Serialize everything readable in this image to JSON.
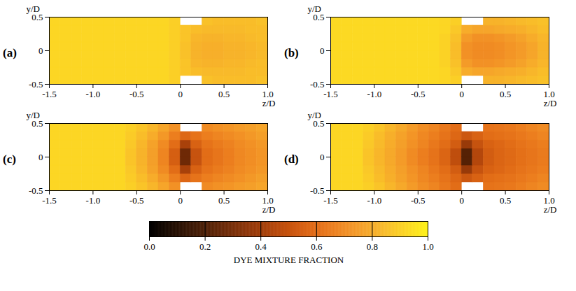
{
  "chart_data": {
    "type": "heatmap",
    "xlabel": "z/D",
    "ylabel": "y/D",
    "xlim": [
      -1.5,
      1.0
    ],
    "ylim": [
      -0.5,
      0.5
    ],
    "xticks": [
      {
        "value": -1.5,
        "label": "-1.5"
      },
      {
        "value": -1.0,
        "label": "-1.0"
      },
      {
        "value": -0.5,
        "label": "-0.5"
      },
      0,
      0.5,
      {
        "value": 1.0,
        "label": "1.0"
      }
    ],
    "yticks": [
      {
        "value": -0.5,
        "label": "-0.5"
      },
      0,
      0.5
    ],
    "xbins": [
      -1.5,
      -1.375,
      -1.25,
      -1.125,
      -1.0,
      -0.875,
      -0.75,
      -0.625,
      -0.5,
      -0.375,
      -0.25,
      -0.125,
      0,
      0.125,
      0.25,
      0.375,
      0.5,
      0.625,
      0.75,
      0.875,
      1.0
    ],
    "ybins": [
      -0.5,
      -0.375,
      -0.25,
      -0.125,
      0,
      0.125,
      0.25,
      0.375,
      0.5
    ],
    "colorbar": {
      "label": "DYE MIXTURE FRACTION",
      "range": [
        0,
        1
      ],
      "ticks": [
        {
          "value": 0,
          "label": "0.0"
        },
        {
          "value": 0.2,
          "label": "0.2"
        },
        {
          "value": 0.4,
          "label": "0.4"
        },
        {
          "value": 0.6,
          "label": "0.6"
        },
        {
          "value": 0.8,
          "label": "0.8"
        },
        {
          "value": 1,
          "label": "1.0"
        }
      ]
    },
    "panels": [
      {
        "label": "(a)",
        "cells": [
          [
            0.92,
            0.92,
            0.92,
            0.92,
            0.92,
            0.92,
            0.92,
            0.92,
            0.92,
            0.92,
            0.92,
            0.9,
            null,
            null,
            0.86,
            0.85,
            0.85,
            0.85,
            0.85,
            0.86
          ],
          [
            0.92,
            0.92,
            0.92,
            0.92,
            0.92,
            0.92,
            0.92,
            0.92,
            0.92,
            0.92,
            0.92,
            0.9,
            0.87,
            0.85,
            0.84,
            0.84,
            0.84,
            0.84,
            0.85,
            0.85
          ],
          [
            0.92,
            0.92,
            0.92,
            0.92,
            0.92,
            0.92,
            0.92,
            0.92,
            0.92,
            0.92,
            0.92,
            0.9,
            0.87,
            0.83,
            0.82,
            0.82,
            0.83,
            0.83,
            0.84,
            0.85
          ],
          [
            0.92,
            0.92,
            0.92,
            0.92,
            0.92,
            0.92,
            0.92,
            0.92,
            0.92,
            0.92,
            0.92,
            0.9,
            0.86,
            0.82,
            0.81,
            0.81,
            0.82,
            0.82,
            0.83,
            0.84
          ],
          [
            0.92,
            0.92,
            0.92,
            0.92,
            0.92,
            0.92,
            0.92,
            0.92,
            0.92,
            0.92,
            0.92,
            0.9,
            0.86,
            0.82,
            0.81,
            0.81,
            0.82,
            0.82,
            0.83,
            0.84
          ],
          [
            0.92,
            0.92,
            0.92,
            0.92,
            0.92,
            0.92,
            0.92,
            0.92,
            0.92,
            0.92,
            0.92,
            0.9,
            0.87,
            0.83,
            0.82,
            0.82,
            0.83,
            0.83,
            0.84,
            0.85
          ],
          [
            0.92,
            0.92,
            0.92,
            0.92,
            0.92,
            0.92,
            0.92,
            0.92,
            0.92,
            0.92,
            0.92,
            0.9,
            0.87,
            0.85,
            0.84,
            0.84,
            0.84,
            0.84,
            0.85,
            0.85
          ],
          [
            0.92,
            0.92,
            0.92,
            0.92,
            0.92,
            0.92,
            0.92,
            0.92,
            0.92,
            0.92,
            0.92,
            0.9,
            null,
            null,
            0.86,
            0.85,
            0.85,
            0.85,
            0.85,
            0.86
          ]
        ]
      },
      {
        "label": "(b)",
        "cells": [
          [
            0.93,
            0.93,
            0.93,
            0.93,
            0.93,
            0.93,
            0.93,
            0.93,
            0.93,
            0.93,
            0.92,
            0.9,
            null,
            null,
            0.82,
            0.82,
            0.83,
            0.84,
            0.85,
            0.86
          ],
          [
            0.93,
            0.93,
            0.93,
            0.93,
            0.93,
            0.93,
            0.93,
            0.93,
            0.93,
            0.93,
            0.92,
            0.88,
            0.8,
            0.78,
            0.78,
            0.79,
            0.8,
            0.81,
            0.83,
            0.85
          ],
          [
            0.93,
            0.93,
            0.93,
            0.93,
            0.93,
            0.93,
            0.93,
            0.93,
            0.93,
            0.93,
            0.91,
            0.86,
            0.75,
            0.72,
            0.72,
            0.73,
            0.75,
            0.77,
            0.8,
            0.83
          ],
          [
            0.93,
            0.93,
            0.93,
            0.93,
            0.93,
            0.93,
            0.93,
            0.93,
            0.93,
            0.93,
            0.91,
            0.85,
            0.72,
            0.7,
            0.7,
            0.71,
            0.73,
            0.75,
            0.78,
            0.82
          ],
          [
            0.93,
            0.93,
            0.93,
            0.93,
            0.93,
            0.93,
            0.93,
            0.93,
            0.93,
            0.93,
            0.91,
            0.85,
            0.72,
            0.7,
            0.7,
            0.71,
            0.73,
            0.75,
            0.78,
            0.82
          ],
          [
            0.93,
            0.93,
            0.93,
            0.93,
            0.93,
            0.93,
            0.93,
            0.93,
            0.93,
            0.93,
            0.91,
            0.86,
            0.75,
            0.72,
            0.72,
            0.73,
            0.75,
            0.77,
            0.8,
            0.83
          ],
          [
            0.93,
            0.93,
            0.93,
            0.93,
            0.93,
            0.93,
            0.93,
            0.93,
            0.93,
            0.93,
            0.92,
            0.88,
            0.8,
            0.78,
            0.78,
            0.79,
            0.8,
            0.81,
            0.83,
            0.85
          ],
          [
            0.93,
            0.93,
            0.93,
            0.93,
            0.93,
            0.93,
            0.93,
            0.93,
            0.93,
            0.93,
            0.92,
            0.9,
            null,
            null,
            0.82,
            0.82,
            0.83,
            0.84,
            0.85,
            0.86
          ]
        ]
      },
      {
        "label": "(c)",
        "cells": [
          [
            0.92,
            0.92,
            0.92,
            0.92,
            0.92,
            0.92,
            0.92,
            0.9,
            0.87,
            0.83,
            0.78,
            0.72,
            null,
            null,
            0.7,
            0.72,
            0.73,
            0.75,
            0.76,
            0.78
          ],
          [
            0.92,
            0.92,
            0.92,
            0.92,
            0.92,
            0.92,
            0.92,
            0.89,
            0.85,
            0.8,
            0.74,
            0.66,
            0.58,
            0.62,
            0.66,
            0.68,
            0.7,
            0.72,
            0.74,
            0.76
          ],
          [
            0.92,
            0.92,
            0.92,
            0.92,
            0.92,
            0.92,
            0.92,
            0.88,
            0.83,
            0.77,
            0.7,
            0.6,
            0.42,
            0.56,
            0.62,
            0.65,
            0.67,
            0.7,
            0.72,
            0.74
          ],
          [
            0.92,
            0.92,
            0.92,
            0.92,
            0.92,
            0.92,
            0.92,
            0.87,
            0.82,
            0.76,
            0.68,
            0.55,
            0.28,
            0.5,
            0.6,
            0.63,
            0.66,
            0.69,
            0.71,
            0.73
          ],
          [
            0.92,
            0.92,
            0.92,
            0.92,
            0.92,
            0.92,
            0.92,
            0.87,
            0.82,
            0.76,
            0.68,
            0.55,
            0.28,
            0.5,
            0.6,
            0.63,
            0.66,
            0.69,
            0.71,
            0.73
          ],
          [
            0.92,
            0.92,
            0.92,
            0.92,
            0.92,
            0.92,
            0.92,
            0.88,
            0.83,
            0.77,
            0.7,
            0.6,
            0.42,
            0.56,
            0.62,
            0.65,
            0.67,
            0.7,
            0.72,
            0.74
          ],
          [
            0.92,
            0.92,
            0.92,
            0.92,
            0.92,
            0.92,
            0.92,
            0.89,
            0.85,
            0.8,
            0.74,
            0.66,
            0.58,
            0.62,
            0.66,
            0.68,
            0.7,
            0.72,
            0.74,
            0.76
          ],
          [
            0.92,
            0.92,
            0.92,
            0.92,
            0.92,
            0.92,
            0.92,
            0.9,
            0.87,
            0.83,
            0.78,
            0.72,
            null,
            null,
            0.7,
            0.72,
            0.73,
            0.75,
            0.76,
            0.78
          ]
        ]
      },
      {
        "label": "(d)",
        "cells": [
          [
            0.92,
            0.92,
            0.92,
            0.9,
            0.87,
            0.83,
            0.79,
            0.75,
            0.71,
            0.68,
            0.64,
            0.6,
            null,
            null,
            0.62,
            0.63,
            0.64,
            0.66,
            0.68,
            0.7
          ],
          [
            0.92,
            0.92,
            0.92,
            0.89,
            0.85,
            0.81,
            0.77,
            0.73,
            0.69,
            0.66,
            0.62,
            0.58,
            0.52,
            0.56,
            0.6,
            0.61,
            0.62,
            0.64,
            0.66,
            0.68
          ],
          [
            0.92,
            0.92,
            0.92,
            0.88,
            0.84,
            0.8,
            0.76,
            0.72,
            0.68,
            0.64,
            0.6,
            0.54,
            0.38,
            0.5,
            0.56,
            0.58,
            0.6,
            0.62,
            0.64,
            0.66
          ],
          [
            0.92,
            0.92,
            0.92,
            0.87,
            0.83,
            0.79,
            0.75,
            0.7,
            0.66,
            0.62,
            0.57,
            0.48,
            0.22,
            0.45,
            0.54,
            0.57,
            0.59,
            0.61,
            0.63,
            0.65
          ],
          [
            0.92,
            0.92,
            0.92,
            0.87,
            0.83,
            0.79,
            0.75,
            0.7,
            0.66,
            0.62,
            0.57,
            0.48,
            0.22,
            0.45,
            0.54,
            0.57,
            0.59,
            0.61,
            0.63,
            0.65
          ],
          [
            0.92,
            0.92,
            0.92,
            0.88,
            0.84,
            0.8,
            0.76,
            0.72,
            0.68,
            0.64,
            0.6,
            0.54,
            0.38,
            0.5,
            0.56,
            0.58,
            0.6,
            0.62,
            0.64,
            0.66
          ],
          [
            0.92,
            0.92,
            0.92,
            0.89,
            0.85,
            0.81,
            0.77,
            0.73,
            0.69,
            0.66,
            0.62,
            0.58,
            0.52,
            0.56,
            0.6,
            0.61,
            0.62,
            0.64,
            0.66,
            0.68
          ],
          [
            0.92,
            0.92,
            0.92,
            0.9,
            0.87,
            0.83,
            0.79,
            0.75,
            0.71,
            0.68,
            0.64,
            0.6,
            null,
            null,
            0.62,
            0.63,
            0.64,
            0.66,
            0.68,
            0.7
          ]
        ]
      }
    ]
  }
}
